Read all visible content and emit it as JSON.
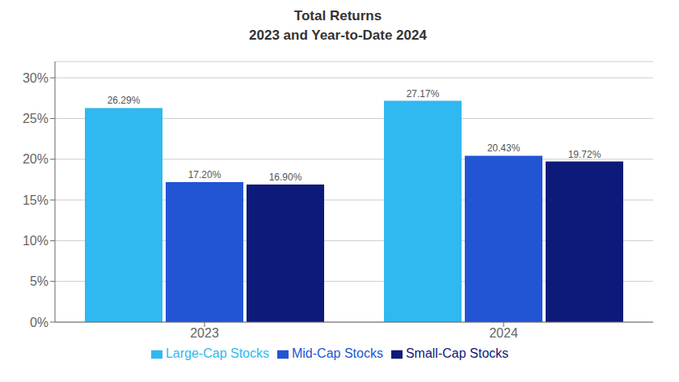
{
  "chart_data": {
    "type": "bar",
    "title": "Total Returns",
    "subtitle": "2023 and Year-to-Date 2024",
    "categories": [
      "2023",
      "2024"
    ],
    "series": [
      {
        "name": "Large-Cap Stocks",
        "color": "#30b8f0",
        "values": [
          26.29,
          27.17
        ],
        "value_labels": [
          "26.29%",
          "27.17%"
        ]
      },
      {
        "name": "Mid-Cap Stocks",
        "color": "#2255d4",
        "values": [
          17.2,
          20.43
        ],
        "value_labels": [
          "17.20%",
          "20.43%"
        ]
      },
      {
        "name": "Small-Cap Stocks",
        "color": "#0d1a7a",
        "values": [
          16.9,
          19.72
        ],
        "value_labels": [
          "16.90%",
          "19.72%"
        ]
      }
    ],
    "ylim": [
      0,
      32
    ],
    "yticks": [
      {
        "value": 0,
        "label": "0%"
      },
      {
        "value": 5,
        "label": "5%"
      },
      {
        "value": 10,
        "label": "10%"
      },
      {
        "value": 15,
        "label": "15%"
      },
      {
        "value": 20,
        "label": "20%"
      },
      {
        "value": 25,
        "label": "25%"
      },
      {
        "value": 30,
        "label": "30%"
      }
    ],
    "grid": true,
    "legend": "bottom",
    "data_labels": true
  }
}
